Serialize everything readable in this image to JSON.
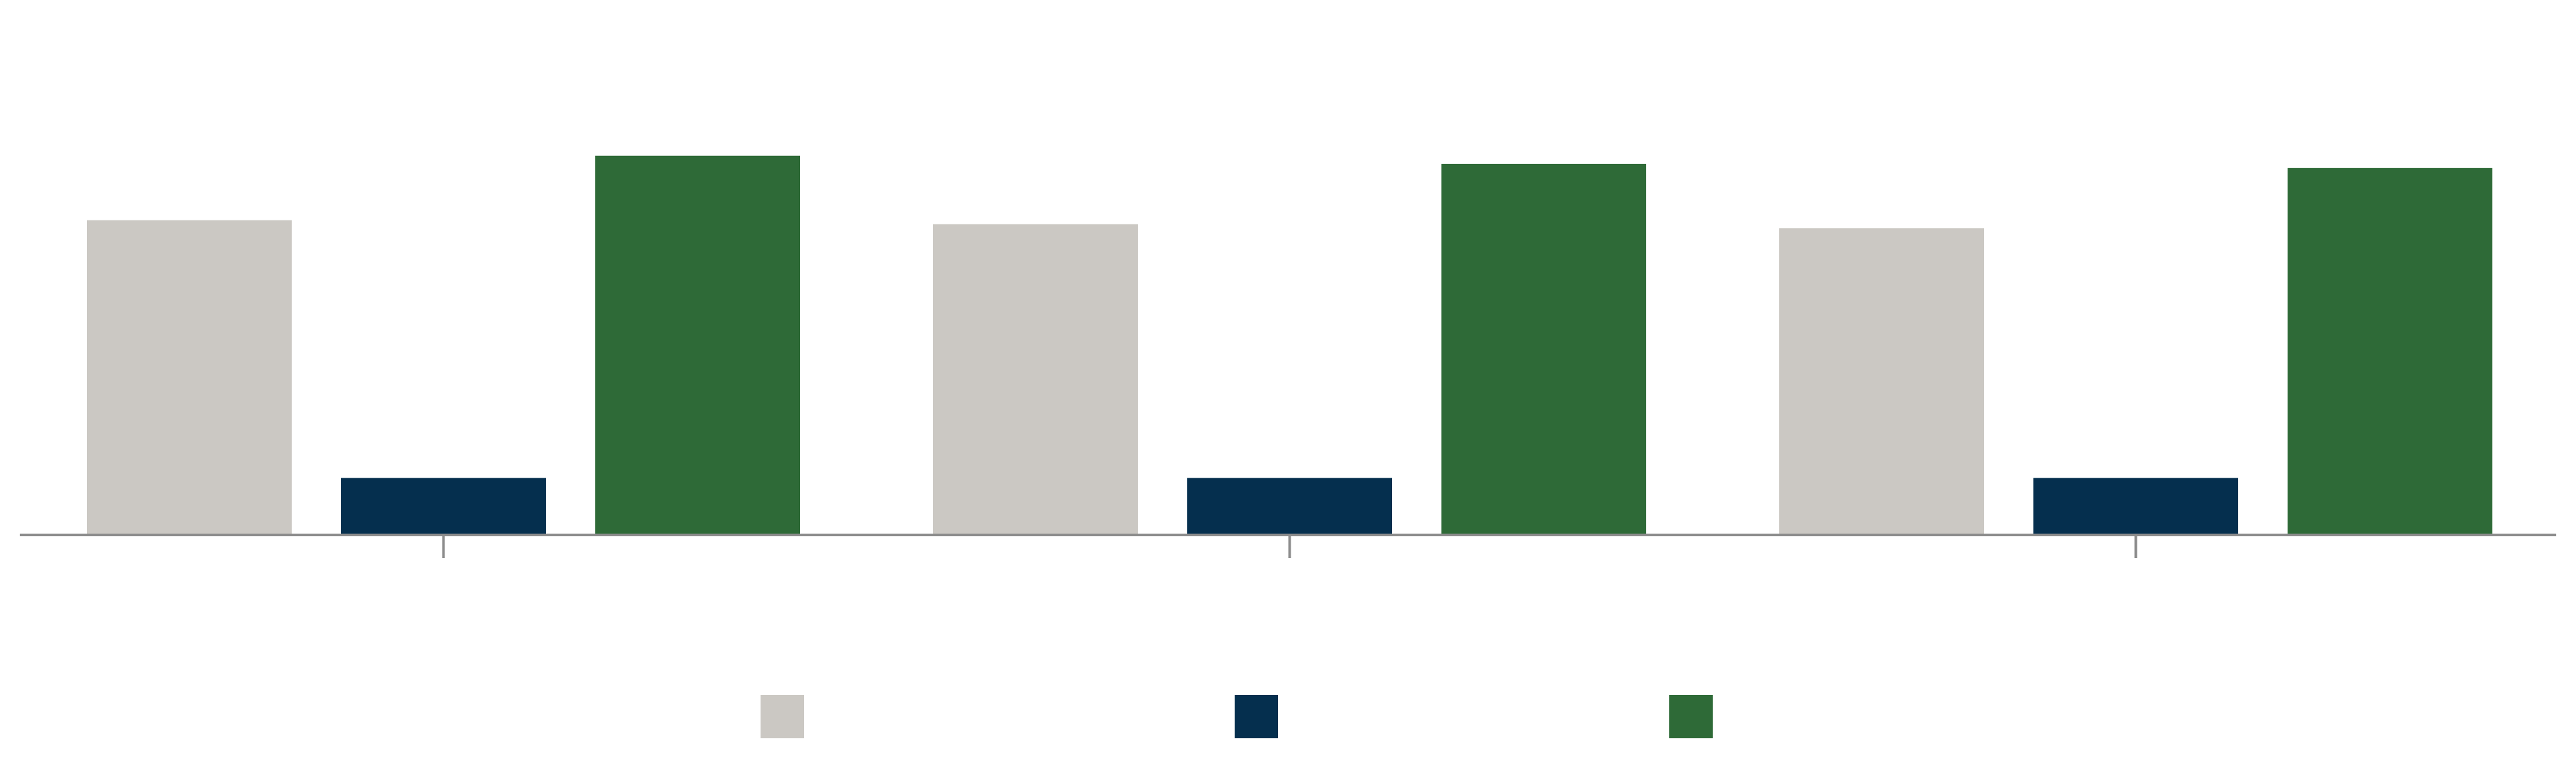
{
  "chart_data": {
    "type": "bar",
    "categories": [
      "",
      "",
      ""
    ],
    "series": [
      {
        "color": "#cbc8c3",
        "values": [
          78,
          77,
          76
        ]
      },
      {
        "color": "#052f4e",
        "values": [
          14,
          14,
          14
        ]
      },
      {
        "color": "#2e6a37",
        "values": [
          94,
          92,
          91
        ]
      }
    ],
    "ylim": [
      0,
      130
    ],
    "grid": false,
    "legend_position": "bottom",
    "title": "",
    "xlabel": "",
    "ylabel": ""
  }
}
